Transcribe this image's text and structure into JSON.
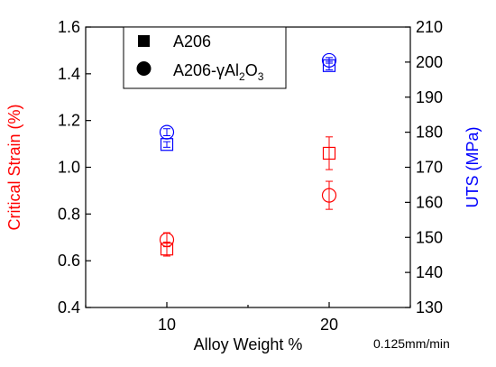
{
  "chart_data": {
    "type": "scatter",
    "x": [
      10,
      20
    ],
    "xlabel": "Alloy Weight %",
    "xlim": [
      5,
      25
    ],
    "x_ticks": [
      10,
      20
    ],
    "y_left": {
      "label": "Critical Strain (%)",
      "lim": [
        0.4,
        1.6
      ],
      "ticks": [
        "0.4",
        "0.6",
        "0.8",
        "1.0",
        "1.2",
        "1.4",
        "1.6"
      ],
      "color": "#ff0000"
    },
    "y_right": {
      "label": "UTS (MPa)",
      "lim": [
        130,
        210
      ],
      "ticks": [
        "130",
        "140",
        "150",
        "160",
        "170",
        "180",
        "190",
        "200",
        "210"
      ],
      "color": "#0000ff"
    },
    "series": [
      {
        "name": "A206",
        "marker": "square",
        "axis": "left",
        "color": "#ff0000",
        "values": [
          0.65,
          1.06
        ],
        "errors": [
          0.03,
          0.07
        ]
      },
      {
        "name": "A206-γAl2O3",
        "marker": "circle",
        "axis": "left",
        "color": "#ff0000",
        "values": [
          0.69,
          0.88
        ],
        "errors": [
          0.03,
          0.06
        ]
      },
      {
        "name": "A206",
        "marker": "square",
        "axis": "right",
        "color": "#0000ff",
        "values": [
          176.5,
          199.0
        ],
        "errors": [
          0.8,
          1.2
        ]
      },
      {
        "name": "A206-γAl2O3",
        "marker": "circle",
        "axis": "right",
        "color": "#0000ff",
        "values": [
          180.0,
          200.5
        ],
        "errors": [
          1.0,
          0.8
        ]
      }
    ],
    "legend": {
      "placement": "top-left",
      "entries": [
        {
          "marker": "square",
          "label": "A206"
        },
        {
          "marker": "circle",
          "label_main": "A206-γAl",
          "sub1": "2",
          "mid": "O",
          "sub2": "3"
        }
      ]
    },
    "annotation": "0.125mm/min",
    "grid": false
  }
}
